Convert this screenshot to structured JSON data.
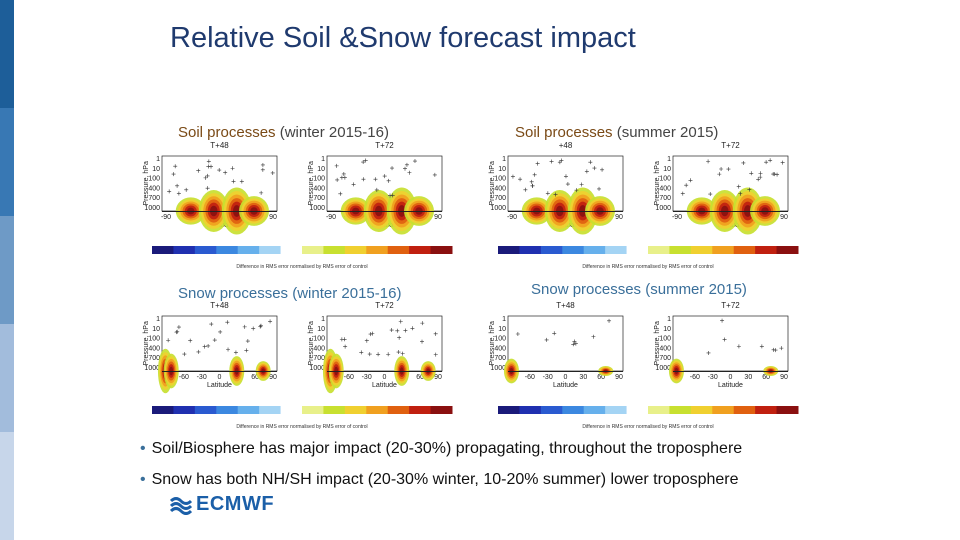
{
  "title": "Relative Soil &Snow forecast impact",
  "sidebar_colors": [
    "#1d5e99",
    "#3878b4",
    "#6e9ac6",
    "#a2bcdc",
    "#c7d6ea"
  ],
  "panels": {
    "soil_winter": {
      "keyword": "Soil processes",
      "period": "(winter 2015-16)",
      "left_title": "T+48",
      "right_title": "T+72"
    },
    "soil_summer": {
      "keyword": "Soil processes",
      "period": "(summer 2015)",
      "left_title": "+48",
      "right_title": "T+72"
    },
    "snow_winter": {
      "keyword": "Snow processes",
      "period": "(winter 2015-16)",
      "left_title": "T+48",
      "right_title": "T+72"
    },
    "snow_summer": {
      "keyword": "Snow processes",
      "period": "(summer 2015)",
      "left_title": "T+48",
      "right_title": "T+72"
    }
  },
  "axes": {
    "ylabel": "Pressure, hPa",
    "xlabel": "Latitude",
    "y_ticks": [
      "1",
      "10",
      "100",
      "400",
      "700",
      "1000"
    ],
    "x_ticks": [
      "-90",
      "-60",
      "-30",
      "0",
      "30",
      "60",
      "90"
    ],
    "bar_caption": "Difference in RMS error normalised by RMS error of control"
  },
  "colorbar": [
    "#1a1a7a",
    "#2030b0",
    "#2a5ad0",
    "#3c88e0",
    "#66b0ec",
    "#a4d4f4",
    "#ffffff",
    "#e8f08a",
    "#c8e030",
    "#f0d030",
    "#f0a020",
    "#e06010",
    "#c02010",
    "#8a1010"
  ],
  "bullets": [
    "Soil/Biosphere has major impact (20-30%) propagating, throughout the troposphere",
    "Snow has both NH/SH impact (20-30% winter, 10-20% summer) lower troposphere"
  ],
  "logo": {
    "name": "ECMWF"
  }
}
